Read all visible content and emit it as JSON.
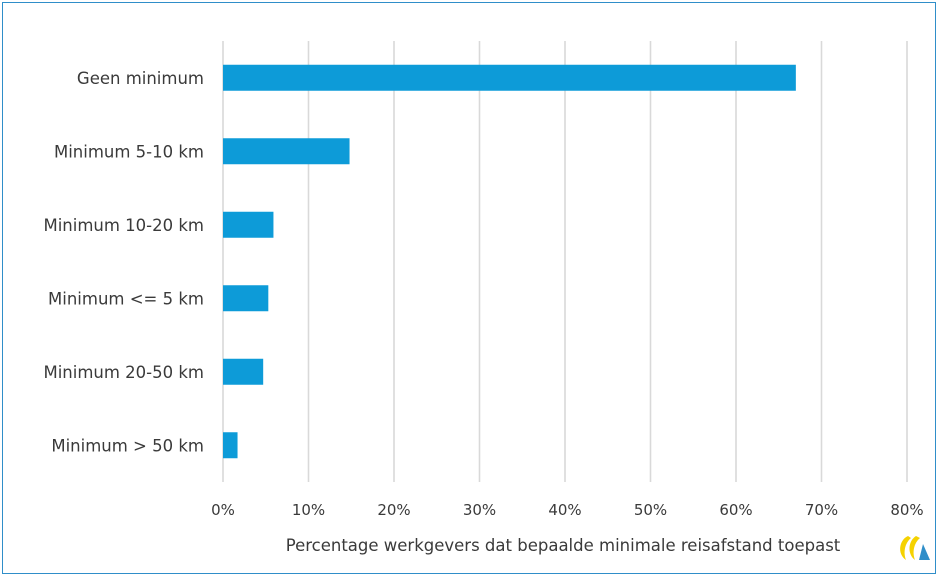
{
  "chart_data": {
    "type": "bar",
    "orientation": "horizontal",
    "categories": [
      "Geen minimum",
      "Minimum 5-10 km",
      "Minimum 10-20 km",
      "Minimum <= 5 km",
      "Minimum 20-50 km",
      "Minimum > 50 km"
    ],
    "values": [
      0.67,
      0.148,
      0.059,
      0.053,
      0.047,
      0.017
    ],
    "xlabel": "Percentage werkgevers dat bepaalde minimale reisafstand toepast",
    "ylabel": "",
    "xlim": [
      0,
      0.8
    ],
    "xticks": [
      "0%",
      "10%",
      "20%",
      "30%",
      "40%",
      "50%",
      "60%",
      "70%",
      "80%"
    ],
    "grid": true,
    "bar_color": "#0d9bd8",
    "grid_color": "#d9d9d9"
  },
  "logo": {
    "icon": "logo-mark",
    "colors": [
      "#f5d200",
      "#2f8ec9"
    ]
  },
  "frame_color": "#2f8ec9"
}
